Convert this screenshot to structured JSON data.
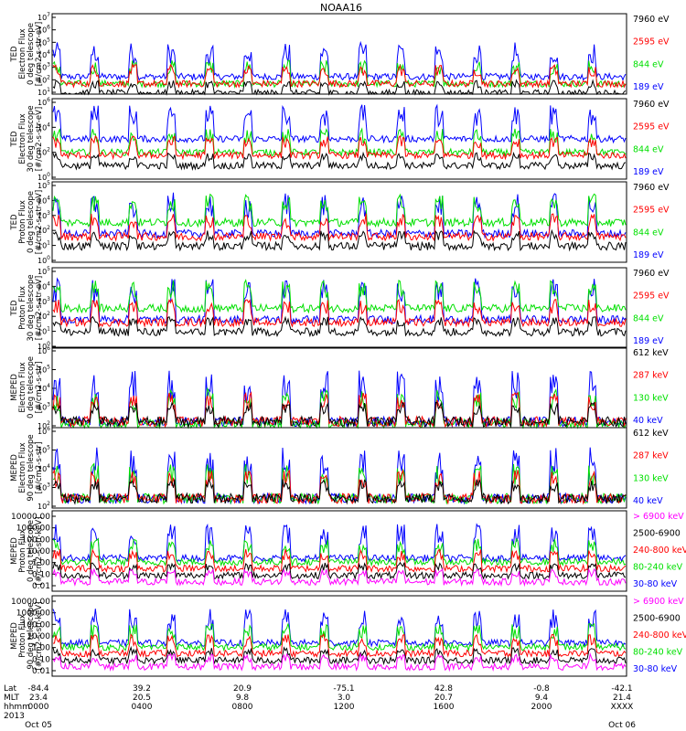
{
  "title": "NOAA16",
  "colors": {
    "black": "#000000",
    "red": "#ff0000",
    "green": "#00e000",
    "blue": "#0000ff",
    "magenta": "#ff00ff"
  },
  "panels": [
    {
      "ylabel_lines": [
        "TED",
        "Electron Flux",
        "0 deg telescope",
        "[#/cm2-s-str-eV]"
      ],
      "yscale": "log",
      "ylim": [
        10,
        10000000
      ],
      "ytick_labels": [
        "10^1",
        "10^2",
        "10^3",
        "10^4",
        "10^5",
        "10^6",
        "10^7"
      ],
      "legend": [
        {
          "text": "7960 eV",
          "color": "black"
        },
        {
          "text": "2595 eV",
          "color": "red"
        },
        {
          "text": "844 eV",
          "color": "green"
        },
        {
          "text": "189 eV",
          "color": "blue"
        }
      ]
    },
    {
      "ylabel_lines": [
        "TED",
        "Electron Flux",
        "30 deg telescope",
        "[#/cm2-s-str-eV]"
      ],
      "yscale": "log",
      "ylim": [
        1,
        1000000
      ],
      "ytick_labels": [
        "10^0",
        "10^2",
        "10^4",
        "10^6"
      ],
      "legend": [
        {
          "text": "7960 eV",
          "color": "black"
        },
        {
          "text": "2595 eV",
          "color": "red"
        },
        {
          "text": "844 eV",
          "color": "green"
        },
        {
          "text": "189 eV",
          "color": "blue"
        }
      ]
    },
    {
      "ylabel_lines": [
        "TED",
        "Proton Flux",
        "0 deg telescope",
        "[#/cm2-s-str-eV]"
      ],
      "yscale": "log",
      "ylim": [
        1,
        100000
      ],
      "ytick_labels": [
        "10^0",
        "10^1",
        "10^2",
        "10^3",
        "10^4",
        "10^5"
      ],
      "legend": [
        {
          "text": "7960 eV",
          "color": "black"
        },
        {
          "text": "2595 eV",
          "color": "red"
        },
        {
          "text": "844 eV",
          "color": "green"
        },
        {
          "text": "189 eV",
          "color": "blue"
        }
      ]
    },
    {
      "ylabel_lines": [
        "TED",
        "Proton Flux",
        "30 deg telescope",
        "[#/cm2-s-str-eV]"
      ],
      "yscale": "log",
      "ylim": [
        1,
        100000
      ],
      "ytick_labels": [
        "10^0",
        "10^1",
        "10^2",
        "10^3",
        "10^4",
        "10^5"
      ],
      "legend": [
        {
          "text": "7960 eV",
          "color": "black"
        },
        {
          "text": "2595 eV",
          "color": "red"
        },
        {
          "text": "844 eV",
          "color": "green"
        },
        {
          "text": "189 eV",
          "color": "blue"
        }
      ]
    },
    {
      "ylabel_lines": [
        "MEPED",
        "Electron Flux",
        "0 deg telescope",
        "[#/cm2-s-str]"
      ],
      "yscale": "log",
      "ylim": [
        100,
        1000000
      ],
      "ytick_labels": [
        "10^2",
        "10^3",
        "10^4",
        "10^5",
        "10^6"
      ],
      "legend": [
        {
          "text": "612 keV",
          "color": "black"
        },
        {
          "text": "287 keV",
          "color": "red"
        },
        {
          "text": "130 keV",
          "color": "green"
        },
        {
          "text": "40 keV",
          "color": "blue"
        }
      ]
    },
    {
      "ylabel_lines": [
        "MEPED",
        "Electron Flux",
        "90 deg telescope",
        "[#/cm2-s-str]"
      ],
      "yscale": "log",
      "ylim": [
        100,
        1000000
      ],
      "ytick_labels": [
        "10^2",
        "10^3",
        "10^4",
        "10^5",
        "10^6"
      ],
      "legend": [
        {
          "text": "612 keV",
          "color": "black"
        },
        {
          "text": "287 keV",
          "color": "red"
        },
        {
          "text": "130 keV",
          "color": "green"
        },
        {
          "text": "40 keV",
          "color": "blue"
        }
      ]
    },
    {
      "ylabel_lines": [
        "MEPED",
        "Proton Flux",
        "0 deg telescope",
        "[#/cm2-s-str-keV]"
      ],
      "yscale": "log",
      "ylim": [
        0.01,
        10000
      ],
      "ytick_labels": [
        "10000.00",
        "1000.00",
        "100.00",
        "10.00",
        "1.00",
        "0.10",
        "0.01"
      ],
      "legend": [
        {
          "text": "> 6900 keV",
          "color": "magenta"
        },
        {
          "text": "2500-6900",
          "color": "black"
        },
        {
          "text": "240-800 keV",
          "color": "red"
        },
        {
          "text": "80-240 keV",
          "color": "green"
        },
        {
          "text": "30-80 keV",
          "color": "blue"
        }
      ]
    },
    {
      "ylabel_lines": [
        "MEPED",
        "Proton Flux",
        "90 deg telescope",
        "[#/cm2-s-str-keV]"
      ],
      "yscale": "log",
      "ylim": [
        0.01,
        10000
      ],
      "ytick_labels": [
        "10000.00",
        "1000.00",
        "100.00",
        "10.00",
        "1.00",
        "0.10",
        "0.01"
      ],
      "legend": [
        {
          "text": "> 6900 keV",
          "color": "magenta"
        },
        {
          "text": "2500-6900",
          "color": "black"
        },
        {
          "text": "240-800 keV",
          "color": "red"
        },
        {
          "text": "80-240 keV",
          "color": "green"
        },
        {
          "text": "30-80 keV",
          "color": "blue"
        }
      ]
    }
  ],
  "xaxis": {
    "row_labels": [
      "Lat",
      "MLT",
      "hhmm",
      "2013"
    ],
    "ticks": [
      {
        "lat": "-84.4",
        "mlt": "23.4",
        "hhmm": "0000",
        "date": "Oct 05"
      },
      {
        "lat": "39.2",
        "mlt": "20.5",
        "hhmm": "0400",
        "date": ""
      },
      {
        "lat": "20.9",
        "mlt": "9.8",
        "hhmm": "0800",
        "date": ""
      },
      {
        "lat": "-75.1",
        "mlt": "3.0",
        "hhmm": "1200",
        "date": ""
      },
      {
        "lat": "42.8",
        "mlt": "20.7",
        "hhmm": "1600",
        "date": ""
      },
      {
        "lat": "-0.8",
        "mlt": "9.4",
        "hhmm": "2000",
        "date": ""
      },
      {
        "lat": "-42.1",
        "mlt": "21.4",
        "hhmm": "XXXX",
        "date": "Oct 06"
      }
    ]
  },
  "chart_data": [
    {
      "type": "line",
      "title": "NOAA16",
      "ylabel": "TED Electron Flux 0 deg telescope [#/cm2-s-str-eV]",
      "yscale": "log",
      "ylim": [
        10,
        10000000
      ],
      "series": [
        {
          "name": "7960 eV",
          "base": 12
        },
        {
          "name": "2595 eV",
          "base": 60
        },
        {
          "name": "844 eV",
          "base": 60
        },
        {
          "name": "189 eV",
          "base": 200
        }
      ]
    },
    {
      "type": "line",
      "ylabel": "TED Electron Flux 30 deg telescope [#/cm2-s-str-eV]",
      "yscale": "log",
      "ylim": [
        1,
        1000000
      ],
      "series": [
        {
          "name": "7960 eV",
          "base": 10
        },
        {
          "name": "2595 eV",
          "base": 60
        },
        {
          "name": "844 eV",
          "base": 100
        },
        {
          "name": "189 eV",
          "base": 1000
        }
      ]
    },
    {
      "type": "line",
      "ylabel": "TED Proton Flux 0 deg telescope [#/cm2-s-str-eV]",
      "yscale": "log",
      "ylim": [
        1,
        100000
      ],
      "series": [
        {
          "name": "7960 eV",
          "base": 10
        },
        {
          "name": "2595 eV",
          "base": 40
        },
        {
          "name": "844 eV",
          "base": 300
        },
        {
          "name": "189 eV",
          "base": 60
        }
      ]
    },
    {
      "type": "line",
      "ylabel": "TED Proton Flux 30 deg telescope [#/cm2-s-str-eV]",
      "yscale": "log",
      "ylim": [
        1,
        100000
      ],
      "series": [
        {
          "name": "7960 eV",
          "base": 10
        },
        {
          "name": "2595 eV",
          "base": 40
        },
        {
          "name": "844 eV",
          "base": 300
        },
        {
          "name": "189 eV",
          "base": 60
        }
      ]
    },
    {
      "type": "line",
      "ylabel": "MEPED Electron Flux 0 deg telescope [#/cm2-s-str]",
      "yscale": "log",
      "ylim": [
        100,
        1000000
      ],
      "series": [
        {
          "name": "612 keV",
          "base": 200
        },
        {
          "name": "287 keV",
          "base": 200
        },
        {
          "name": "130 keV",
          "base": 150
        },
        {
          "name": "40 keV",
          "base": 200
        }
      ]
    },
    {
      "type": "line",
      "ylabel": "MEPED Electron Flux 90 deg telescope [#/cm2-s-str]",
      "yscale": "log",
      "ylim": [
        100,
        1000000
      ],
      "series": [
        {
          "name": "612 keV",
          "base": 300
        },
        {
          "name": "287 keV",
          "base": 300
        },
        {
          "name": "130 keV",
          "base": 300
        },
        {
          "name": "40 keV",
          "base": 300
        }
      ]
    },
    {
      "type": "line",
      "ylabel": "MEPED Proton Flux 0 deg telescope [#/cm2-s-str-keV]",
      "yscale": "log",
      "ylim": [
        0.01,
        10000
      ],
      "series": [
        {
          "name": "> 6900 keV",
          "base": 0.05
        },
        {
          "name": "2500-6900",
          "base": 0.15
        },
        {
          "name": "240-800 keV",
          "base": 0.5
        },
        {
          "name": "80-240 keV",
          "base": 1.5
        },
        {
          "name": "30-80 keV",
          "base": 3
        }
      ]
    },
    {
      "type": "line",
      "ylabel": "MEPED Proton Flux 90 deg telescope [#/cm2-s-str-keV]",
      "yscale": "log",
      "ylim": [
        0.01,
        10000
      ],
      "series": [
        {
          "name": "> 6900 keV",
          "base": 0.05
        },
        {
          "name": "2500-6900",
          "base": 0.15
        },
        {
          "name": "240-800 keV",
          "base": 0.5
        },
        {
          "name": "80-240 keV",
          "base": 1.5
        },
        {
          "name": "30-80 keV",
          "base": 3
        }
      ]
    }
  ]
}
